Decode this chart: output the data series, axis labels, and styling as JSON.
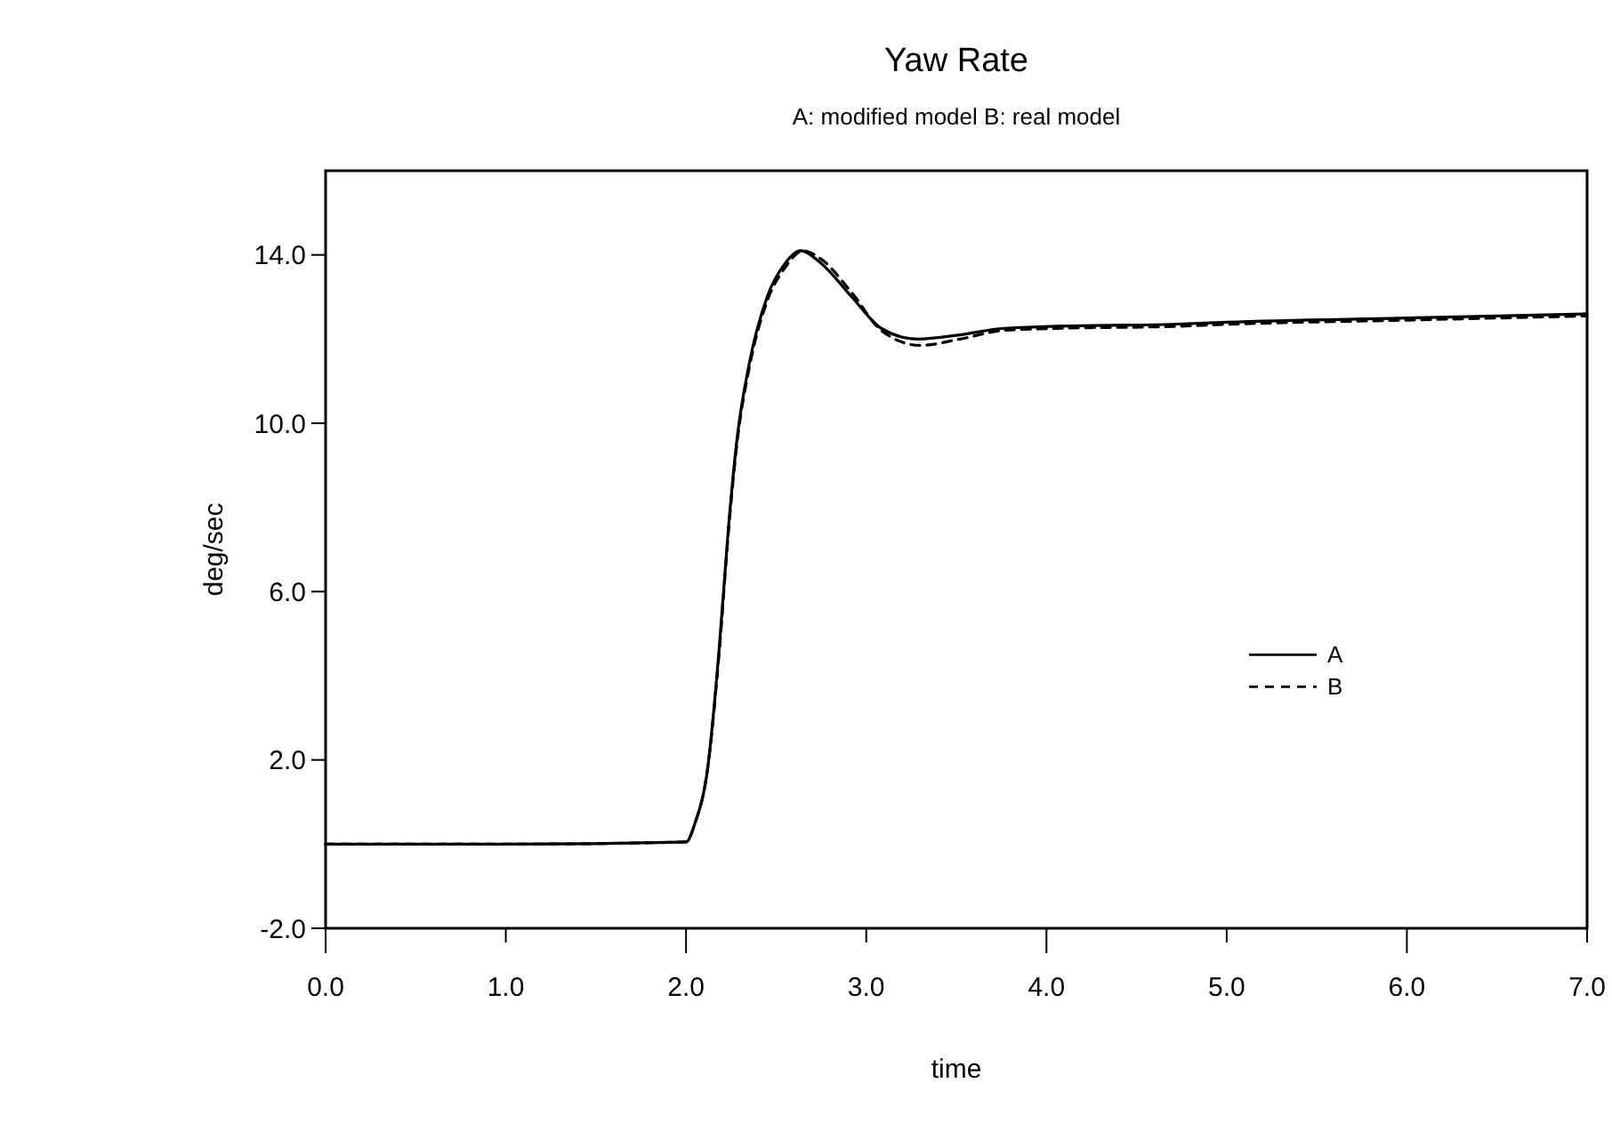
{
  "chart_data": {
    "type": "line",
    "title": "Yaw Rate",
    "subtitle": "A: modified model  B: real model",
    "xlabel": "time",
    "ylabel": "deg/sec",
    "xlim": [
      0,
      7
    ],
    "ylim": [
      -2,
      16
    ],
    "xticks": [
      {
        "value": 0,
        "label": "0.0"
      },
      {
        "value": 1,
        "label": "1.0"
      },
      {
        "value": 2,
        "label": "2.0"
      },
      {
        "value": 3,
        "label": "3.0"
      },
      {
        "value": 4,
        "label": "4.0"
      },
      {
        "value": 5,
        "label": "5.0"
      },
      {
        "value": 6,
        "label": "6.0"
      },
      {
        "value": 7,
        "label": "7.0"
      }
    ],
    "yticks": [
      {
        "value": -2,
        "label": "-2.0"
      },
      {
        "value": 2,
        "label": "2.0"
      },
      {
        "value": 6,
        "label": "6.0"
      },
      {
        "value": 10,
        "label": "10.0"
      },
      {
        "value": 14,
        "label": "14.0"
      }
    ],
    "grid": false,
    "legend": "right",
    "marker": "none",
    "series": [
      {
        "name": "A",
        "color": "#000000",
        "line_style": "solid",
        "x": [
          0,
          1,
          2,
          2.05,
          2.12,
          2.185,
          2.235,
          2.285,
          2.35,
          2.45,
          2.55,
          2.635,
          2.75,
          2.92,
          3.085,
          3.285,
          3.52,
          3.75,
          4.02,
          4.7,
          5,
          6,
          7
        ],
        "values": [
          0,
          0,
          0.05,
          0.5,
          1.8,
          4.7,
          7.5,
          9.7,
          11.4,
          13,
          13.8,
          14.1,
          13.8,
          13,
          12.25,
          12,
          12.1,
          12.25,
          12.3,
          12.35,
          12.4,
          12.5,
          12.6
        ]
      },
      {
        "name": "B",
        "color": "#000000",
        "line_style": "dashed",
        "x": [
          0,
          1,
          2,
          2.05,
          2.12,
          2.185,
          2.235,
          2.285,
          2.35,
          2.45,
          2.55,
          2.65,
          2.75,
          2.92,
          3.085,
          3.3,
          3.52,
          3.75,
          4.02,
          4.7,
          5,
          6,
          7
        ],
        "values": [
          0,
          0,
          0.05,
          0.5,
          1.8,
          4.6,
          7.4,
          9.6,
          11.3,
          12.9,
          13.7,
          14.1,
          13.9,
          13.1,
          12.2,
          11.85,
          12,
          12.2,
          12.25,
          12.3,
          12.35,
          12.45,
          12.55
        ]
      }
    ]
  }
}
